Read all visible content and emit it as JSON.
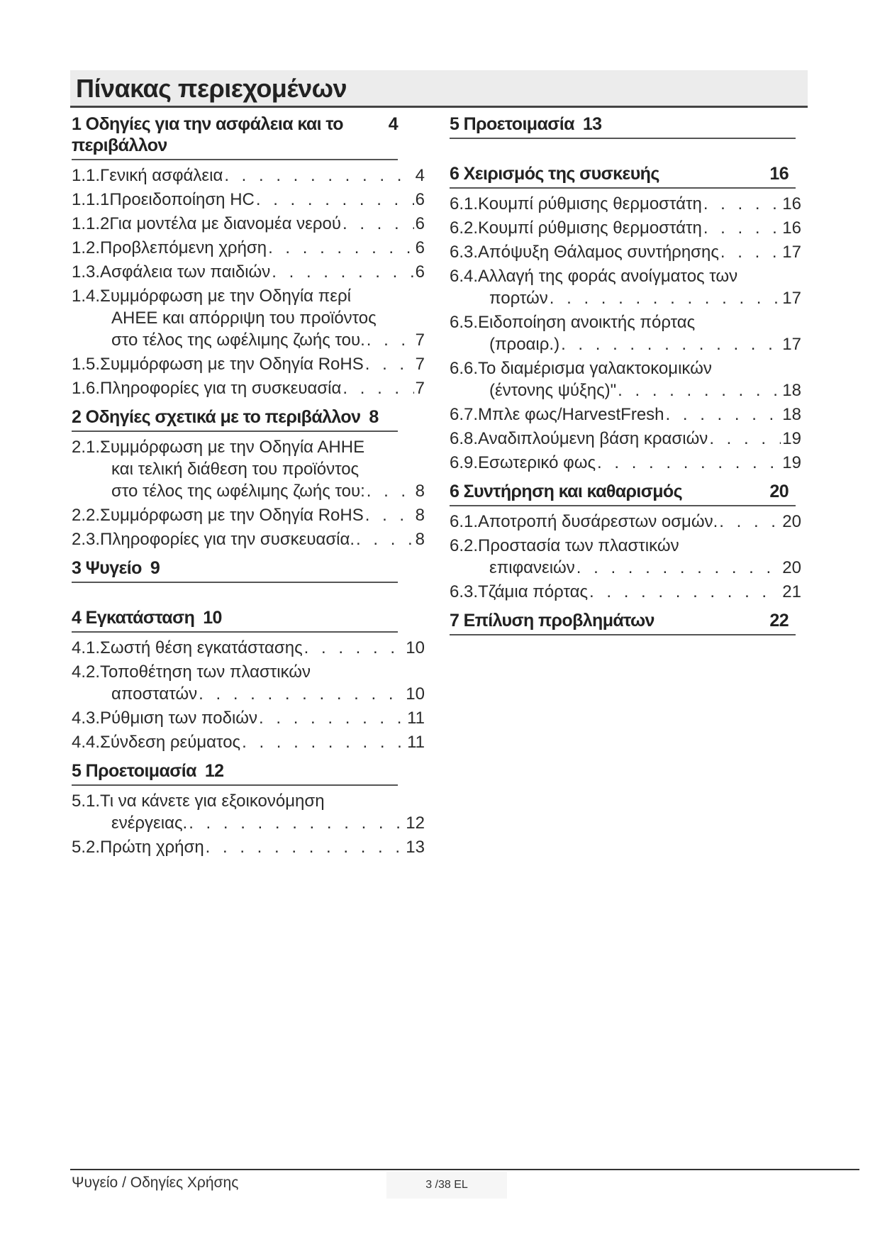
{
  "title": "Πίνακας περιεχομένων",
  "left_sections": [
    {
      "title": "1  Οδηγίες για την ασφάλεια και το περιβάλλον",
      "page": "4",
      "entries": [
        {
          "num": "1.1.",
          "lines": [
            "Γενική ασφάλεια"
          ],
          "page": "4"
        },
        {
          "num": "1.1.1 ",
          "lines": [
            "Προειδοποίηση HC"
          ],
          "page": "6"
        },
        {
          "num": "1.1.2 ",
          "lines": [
            "Για μοντέλα με διανομέα νερού"
          ],
          "page": "6"
        },
        {
          "num": "1.2.",
          "lines": [
            "Προβλεπόμενη χρήση"
          ],
          "page": "6"
        },
        {
          "num": "1.3.",
          "lines": [
            "Ασφάλεια των παιδιών"
          ],
          "page": "6"
        },
        {
          "num": "1.4.",
          "lines": [
            "Συμμόρφωση με την Οδηγία περί",
            "ΑΗΕΕ και απόρριψη του προϊόντος",
            "στο τέλος της ωφέλιμης ζωής του."
          ],
          "page": "7"
        },
        {
          "num": "1.5.",
          "lines": [
            "Συμμόρφωση με την Οδηγία RoHS "
          ],
          "page": "7"
        },
        {
          "num": "1.6.",
          "lines": [
            "Πληροφορίες για τη συσκευασία"
          ],
          "page": "7"
        }
      ]
    },
    {
      "title": "2  Οδηγίες σχετικά με το περιβάλλον",
      "page": "8",
      "entries": [
        {
          "num": "2.1. ",
          "lines": [
            "Συμμόρφωση με την Οδηγία ΑΗΗΕ",
            "και τελική διάθεση του προϊόντος",
            "στο τέλος της ωφέλιμης ζωής του: "
          ],
          "page": "8"
        },
        {
          "num": "2.2. ",
          "lines": [
            "Συμμόρφωση με την Οδηγία RoHS"
          ],
          "page": "8"
        },
        {
          "num": "2.3. ",
          "lines": [
            "Πληροφορίες για την συσκευασία."
          ],
          "page": "8"
        }
      ]
    },
    {
      "title": "3  Ψυγείο",
      "page": "9",
      "entries": []
    },
    {
      "title": "4  Εγκατάσταση",
      "page": "10",
      "entries": [
        {
          "num": "4.1.",
          "lines": [
            "Σωστή θέση εγκατάστασης"
          ],
          "page": "10"
        },
        {
          "num": "4.2.",
          "lines": [
            "Τοποθέτηση των πλαστικών",
            "αποστατών"
          ],
          "page": "10"
        },
        {
          "num": "4.3.",
          "lines": [
            "Ρύθμιση των ποδιών"
          ],
          "page": "11"
        },
        {
          "num": "4.4.",
          "lines": [
            "Σύνδεση ρεύματος"
          ],
          "page": "11"
        }
      ]
    },
    {
      "title": "5  Προετοιμασία",
      "page": "12",
      "entries": [
        {
          "num": "5.1.",
          "lines": [
            "Τι να κάνετε για εξοικονόμηση",
            "ενέργειας."
          ],
          "page": "12"
        },
        {
          "num": "5.2.",
          "lines": [
            "Πρώτη χρήση"
          ],
          "page": "13"
        }
      ]
    }
  ],
  "right_sections": [
    {
      "title": "5  Προετοιμασία",
      "page": "13",
      "entries": []
    },
    {
      "title": "6  Χειρισμός της συσκευής",
      "page": "16",
      "page_right": true,
      "entries": [
        {
          "num": "6.1.",
          "lines": [
            "Κουμπί ρύθμισης θερμοστάτη"
          ],
          "page": "16"
        },
        {
          "num": "6.2.",
          "lines": [
            "Κουμπί ρύθμισης θερμοστάτη"
          ],
          "page": "16"
        },
        {
          "num": "6.3.",
          "lines": [
            "Απόψυξη Θάλαμος συντήρησης"
          ],
          "page": "17"
        },
        {
          "num": "6.4.",
          "lines": [
            "Αλλαγή της φοράς ανοίγματος των",
            "πορτών"
          ],
          "page": "17"
        },
        {
          "num": "6.5. ",
          "lines": [
            "Ειδοποίηση ανοικτής πόρτας",
            "(προαιρ.)"
          ],
          "page": "17"
        },
        {
          "num": "6.6. ",
          "lines": [
            "Το διαμέρισμα γαλακτοκομικών",
            "(έντονης ψύξης)\""
          ],
          "page": "18"
        },
        {
          "num": "6.7.",
          "lines": [
            "Μπλε φως/HarvestFresh"
          ],
          "page": "18"
        },
        {
          "num": "6.8.",
          "lines": [
            "Αναδιπλούμενη βάση κρασιών"
          ],
          "page": "19"
        },
        {
          "num": "6.9.",
          "lines": [
            "Εσωτερικό φως"
          ],
          "page": "19"
        }
      ]
    },
    {
      "title": "6   Συντήρηση και καθαρισμός",
      "page": "20",
      "page_right": true,
      "entries": [
        {
          "num": "6.1.",
          "lines": [
            "Αποτροπή δυσάρεστων οσμών."
          ],
          "page": "20"
        },
        {
          "num": "6.2. ",
          "lines": [
            "Προστασία των πλαστικών",
            "επιφανειών"
          ],
          "page": "20"
        },
        {
          "num": "6.3.",
          "lines": [
            "Τζάμια πόρτας"
          ],
          "page": "21"
        }
      ]
    },
    {
      "title": "7  Επίλυση προβλημάτων",
      "page": "22",
      "page_right": true,
      "entries": []
    }
  ],
  "footer": {
    "left": "Ψυγείο / Οδηγίες Χρήσης",
    "page": "3 /38 EL"
  }
}
